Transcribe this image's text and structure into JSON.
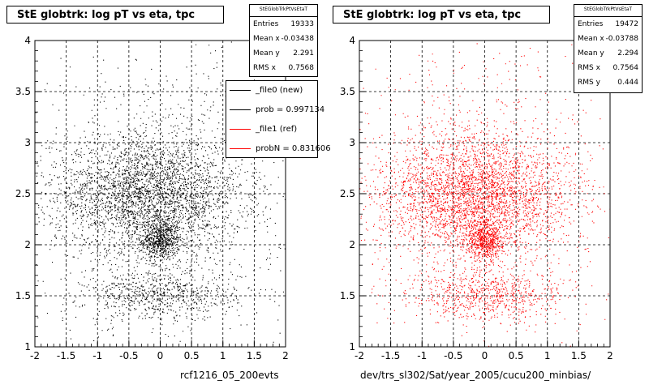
{
  "panels": [
    {
      "title": "StE globtrk: log pT vs eta, tpc",
      "stats": {
        "name": "StEGlobTrkPtVsEtaT",
        "rows": [
          {
            "label": "Entries",
            "value": "19333"
          },
          {
            "label": "Mean x",
            "value": "-0.03438"
          },
          {
            "label": "Mean y",
            "value": "2.291"
          },
          {
            "label": "RMS x",
            "value": "0.7568"
          }
        ]
      },
      "legend": [
        {
          "text": "_file0 (new)",
          "color": "#000000"
        },
        {
          "text": "prob = 0.997134",
          "color": "#000000"
        },
        {
          "text": "_file1 (ref)",
          "color": "#ff0000"
        },
        {
          "text": "probN = 0.831606",
          "color": "#ff0000"
        }
      ],
      "xtitle": "rcf1216_05_200evts",
      "marker_color": "#000000"
    },
    {
      "title": "StE globtrk: log pT vs eta, tpc",
      "stats": {
        "name": "StEGlobTrkPtVsEtaT",
        "rows": [
          {
            "label": "Entries",
            "value": "19472"
          },
          {
            "label": "Mean x",
            "value": "-0.03788"
          },
          {
            "label": "Mean y",
            "value": "2.294"
          },
          {
            "label": "RMS x",
            "value": "0.7564"
          },
          {
            "label": "RMS y",
            "value": "0.444"
          }
        ]
      },
      "xtitle": "dev/trs_sl302/Sat/year_2005/cucu200_minbias/",
      "marker_color": "#ff0000"
    }
  ],
  "chart_data": [
    {
      "type": "scatter",
      "title": "StE globtrk: log pT vs eta, tpc",
      "xlabel": "rcf1216_05_200evts",
      "ylabel": "",
      "xlim": [
        -2,
        2
      ],
      "ylim": [
        1,
        4
      ],
      "x_ticks": [
        "-2",
        "-1.5",
        "-1",
        "-0.5",
        "0",
        "0.5",
        "1",
        "1.5",
        "2"
      ],
      "y_ticks": [
        "1",
        "1.5",
        "2",
        "2.5",
        "3",
        "3.5",
        "4"
      ],
      "grid": true,
      "entries": 19333,
      "mean_x": -0.03438,
      "mean_y": 2.291,
      "rms_x": 0.7568,
      "clusters": [
        {
          "x": 0.0,
          "y": 2.05,
          "sx": 0.15,
          "sy": 0.1,
          "weight": 0.12
        },
        {
          "x": -0.2,
          "y": 2.5,
          "sx": 0.75,
          "sy": 0.28,
          "weight": 0.55
        },
        {
          "x": 0.0,
          "y": 1.5,
          "sx": 0.6,
          "sy": 0.12,
          "weight": 0.13
        },
        {
          "x": 0.0,
          "y": 2.5,
          "sx": 1.0,
          "sy": 0.7,
          "weight": 0.2
        }
      ]
    },
    {
      "type": "scatter",
      "title": "StE globtrk: log pT vs eta, tpc",
      "xlabel": "dev/trs_sl302/Sat/year_2005/cucu200_minbias/",
      "ylabel": "",
      "xlim": [
        -2,
        2
      ],
      "ylim": [
        1,
        4
      ],
      "x_ticks": [
        "-2",
        "-1.5",
        "-1",
        "-0.5",
        "0",
        "0.5",
        "1",
        "1.5",
        "2"
      ],
      "y_ticks": [
        "1",
        "1.5",
        "2",
        "2.5",
        "3",
        "3.5",
        "4"
      ],
      "grid": true,
      "entries": 19472,
      "mean_x": -0.03788,
      "mean_y": 2.294,
      "rms_x": 0.7564,
      "rms_y": 0.444,
      "clusters": [
        {
          "x": 0.0,
          "y": 2.05,
          "sx": 0.15,
          "sy": 0.1,
          "weight": 0.12
        },
        {
          "x": -0.2,
          "y": 2.5,
          "sx": 0.75,
          "sy": 0.28,
          "weight": 0.55
        },
        {
          "x": 0.0,
          "y": 1.5,
          "sx": 0.6,
          "sy": 0.12,
          "weight": 0.13
        },
        {
          "x": 0.0,
          "y": 2.5,
          "sx": 1.0,
          "sy": 0.7,
          "weight": 0.2
        }
      ]
    }
  ]
}
